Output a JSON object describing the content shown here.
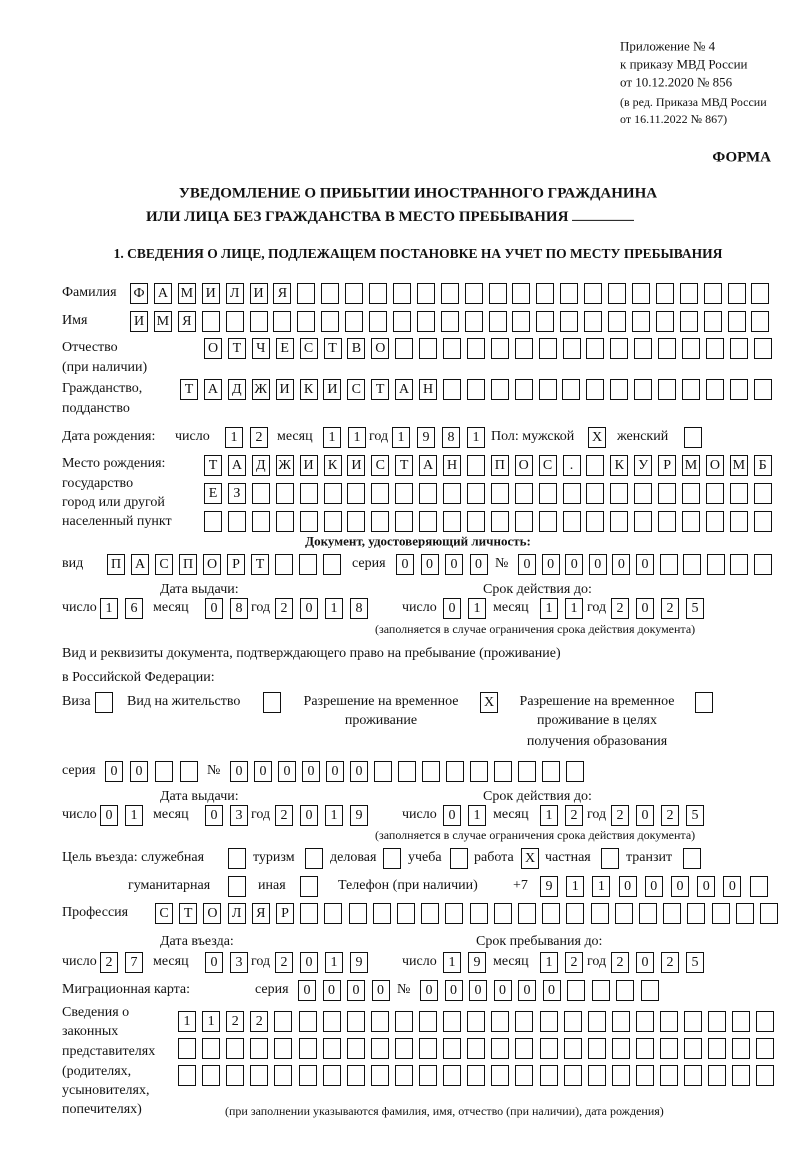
{
  "header": {
    "appendix_lines": [
      "Приложение № 4",
      "к приказу МВД России",
      "от 10.12.2020 № 856"
    ],
    "edition_lines": [
      "(в ред. Приказа МВД России",
      "от 16.11.2022 № 867)"
    ],
    "form_label": "ФОРМА",
    "title_line1": "УВЕДОМЛЕНИЕ О ПРИБЫТИИ ИНОСТРАННОГО ГРАЖДАНИНА",
    "title_line2": "ИЛИ ЛИЦА БЕЗ ГРАЖДАНСТВА В МЕСТО ПРЕБЫВАНИЯ",
    "section1": "1. СВЕДЕНИЯ О ЛИЦЕ, ПОДЛЕЖАЩЕМ ПОСТАНОВКЕ НА УЧЕТ ПО МЕСТУ ПРЕБЫВАНИЯ"
  },
  "labels": {
    "surname": "Фамилия",
    "name": "Имя",
    "patronymic": "Отчество",
    "patronymic_note": "(при наличии)",
    "citizenship": "Гражданство,",
    "citizenship2": "подданство",
    "birth_date": "Дата рождения:",
    "day": "число",
    "month": "месяц",
    "year": "год",
    "sex": "Пол: мужской",
    "female": "женский",
    "birth_place": [
      "Место рождения:",
      "государство",
      "город или другой",
      "населенный пункт"
    ],
    "id_doc": "Документ, удостоверяющий личность:",
    "kind": "вид",
    "series": "серия",
    "number": "№",
    "issue_date": "Дата выдачи:",
    "valid_until": "Срок действия до:",
    "validity_note": "(заполняется в случае ограничения срока действия документа)",
    "stay_doc": "Вид и реквизиты документа, подтверждающего право на пребывание (проживание)",
    "stay_doc2": "в Российской Федерации:",
    "visa": "Виза",
    "residence": "Вид на жительство",
    "temp_residence": [
      "Разрешение на временное",
      "проживание"
    ],
    "temp_residence_edu": [
      "Разрешение на временное",
      "проживание в целях",
      "получения образования"
    ],
    "purpose": "Цель въезда: служебная",
    "tourism": "туризм",
    "business": "деловая",
    "study": "учеба",
    "work": "работа",
    "private": "частная",
    "transit": "транзит",
    "humanitarian": "гуманитарная",
    "other": "иная",
    "phone": "Телефон (при наличии)",
    "phone_prefix": "+7",
    "profession": "Профессия",
    "entry_date": "Дата въезда:",
    "stay_until": "Срок пребывания до:",
    "migration_card": "Миграционная карта:",
    "representatives": [
      "Сведения о",
      "законных",
      "представителях",
      "(родителях,",
      "усыновителях,",
      "попечителях)"
    ],
    "representatives_note": "(при заполнении указываются фамилия, имя, отчество (при наличии), дата рождения)"
  },
  "fields": {
    "surname": [
      "Ф",
      "А",
      "М",
      "И",
      "Л",
      "И",
      "Я",
      "",
      "",
      "",
      "",
      "",
      "",
      "",
      "",
      "",
      "",
      "",
      "",
      "",
      "",
      "",
      "",
      "",
      "",
      "",
      ""
    ],
    "name": [
      "И",
      "М",
      "Я",
      "",
      "",
      "",
      "",
      "",
      "",
      "",
      "",
      "",
      "",
      "",
      "",
      "",
      "",
      "",
      "",
      "",
      "",
      "",
      "",
      "",
      "",
      "",
      ""
    ],
    "patronymic": [
      "О",
      "Т",
      "Ч",
      "Е",
      "С",
      "Т",
      "В",
      "О",
      "",
      "",
      "",
      "",
      "",
      "",
      "",
      "",
      "",
      "",
      "",
      "",
      "",
      "",
      "",
      ""
    ],
    "citizenship": [
      "Т",
      "А",
      "Д",
      "Ж",
      "И",
      "К",
      "И",
      "С",
      "Т",
      "А",
      "Н",
      "",
      "",
      "",
      "",
      "",
      "",
      "",
      "",
      "",
      "",
      "",
      "",
      "",
      ""
    ],
    "birth_day": [
      "1",
      "2"
    ],
    "birth_month": [
      "1",
      "1"
    ],
    "birth_year": [
      "1",
      "9",
      "8",
      "1"
    ],
    "sex_male": [
      "X"
    ],
    "sex_female": [
      ""
    ],
    "birth_place_1": [
      "Т",
      "А",
      "Д",
      "Ж",
      "И",
      "К",
      "И",
      "С",
      "Т",
      "А",
      "Н",
      "",
      "П",
      "О",
      "С",
      ".",
      "",
      "К",
      "У",
      "Р",
      "М",
      "О",
      "М",
      "Б"
    ],
    "birth_place_2": [
      "Е",
      "З",
      "",
      "",
      "",
      "",
      "",
      "",
      "",
      "",
      "",
      "",
      "",
      "",
      "",
      "",
      "",
      "",
      "",
      "",
      "",
      "",
      "",
      ""
    ],
    "birth_place_3": [
      "",
      "",
      "",
      "",
      "",
      "",
      "",
      "",
      "",
      "",
      "",
      "",
      "",
      "",
      "",
      "",
      "",
      "",
      "",
      "",
      "",
      "",
      "",
      ""
    ],
    "id_kind": [
      "П",
      "А",
      "С",
      "П",
      "О",
      "Р",
      "Т",
      "",
      "",
      ""
    ],
    "id_series": [
      "0",
      "0",
      "0",
      "0"
    ],
    "id_number": [
      "0",
      "0",
      "0",
      "0",
      "0",
      "0",
      "",
      "",
      "",
      "",
      ""
    ],
    "id_issue_day": [
      "1",
      "6"
    ],
    "id_issue_month": [
      "0",
      "8"
    ],
    "id_issue_year": [
      "2",
      "0",
      "1",
      "8"
    ],
    "id_valid_day": [
      "0",
      "1"
    ],
    "id_valid_month": [
      "1",
      "1"
    ],
    "id_valid_year": [
      "2",
      "0",
      "2",
      "5"
    ],
    "visa": [
      ""
    ],
    "residence": [
      ""
    ],
    "temp_residence": [
      "X"
    ],
    "temp_residence_edu": [
      ""
    ],
    "stay_series": [
      "0",
      "0",
      "",
      ""
    ],
    "stay_number": [
      "0",
      "0",
      "0",
      "0",
      "0",
      "0",
      "",
      "",
      "",
      "",
      "",
      "",
      "",
      "",
      ""
    ],
    "stay_issue_day": [
      "0",
      "1"
    ],
    "stay_issue_month": [
      "0",
      "3"
    ],
    "stay_issue_year": [
      "2",
      "0",
      "1",
      "9"
    ],
    "stay_valid_day": [
      "0",
      "1"
    ],
    "stay_valid_month": [
      "1",
      "2"
    ],
    "stay_valid_year": [
      "2",
      "0",
      "2",
      "5"
    ],
    "purpose_official": [
      ""
    ],
    "purpose_tourism": [
      ""
    ],
    "purpose_business": [
      ""
    ],
    "purpose_study": [
      ""
    ],
    "purpose_work": [
      "X"
    ],
    "purpose_private": [
      ""
    ],
    "purpose_transit": [
      ""
    ],
    "purpose_humanitarian": [
      ""
    ],
    "purpose_other": [
      ""
    ],
    "phone": [
      "9",
      "1",
      "1",
      "0",
      "0",
      "0",
      "0",
      "0",
      ""
    ],
    "profession": [
      "С",
      "Т",
      "О",
      "Л",
      "Я",
      "Р",
      "",
      "",
      "",
      "",
      "",
      "",
      "",
      "",
      "",
      "",
      "",
      "",
      "",
      "",
      "",
      "",
      "",
      "",
      "",
      ""
    ],
    "entry_day": [
      "2",
      "7"
    ],
    "entry_month": [
      "0",
      "3"
    ],
    "entry_year": [
      "2",
      "0",
      "1",
      "9"
    ],
    "stay_until_day": [
      "1",
      "9"
    ],
    "stay_until_month": [
      "1",
      "2"
    ],
    "stay_until_year": [
      "2",
      "0",
      "2",
      "5"
    ],
    "mig_series": [
      "0",
      "0",
      "0",
      "0"
    ],
    "mig_number": [
      "0",
      "0",
      "0",
      "0",
      "0",
      "0",
      "",
      "",
      "",
      ""
    ],
    "rep_1": [
      "1",
      "1",
      "2",
      "2",
      "",
      "",
      "",
      "",
      "",
      "",
      "",
      "",
      "",
      "",
      "",
      "",
      "",
      "",
      "",
      "",
      "",
      "",
      "",
      "",
      ""
    ],
    "rep_2": [
      "",
      "",
      "",
      "",
      "",
      "",
      "",
      "",
      "",
      "",
      "",
      "",
      "",
      "",
      "",
      "",
      "",
      "",
      "",
      "",
      "",
      "",
      "",
      "",
      ""
    ],
    "rep_3": [
      "",
      "",
      "",
      "",
      "",
      "",
      "",
      "",
      "",
      "",
      "",
      "",
      "",
      "",
      "",
      "",
      "",
      "",
      "",
      "",
      "",
      "",
      "",
      "",
      ""
    ]
  }
}
